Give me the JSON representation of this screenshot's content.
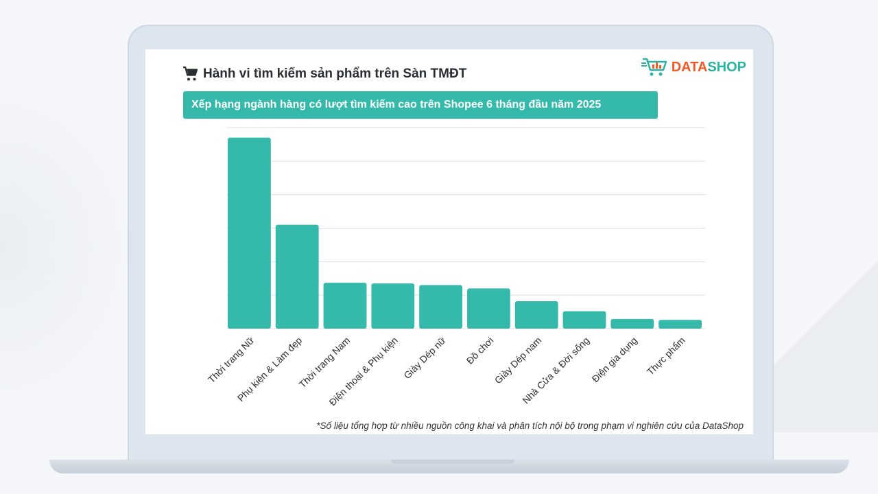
{
  "header": {
    "title": "Hành vi tìm kiếm sản phẩm trên Sàn TMĐT",
    "icon": "cart-icon"
  },
  "brand": {
    "part1": "DATA",
    "part2": "SHOP",
    "colors": {
      "data": "#f15a24",
      "shop": "#2ab3a5"
    }
  },
  "subtitle": "Xếp hạng ngành hàng có lượt tìm kiếm cao trên Shopee 6 tháng đầu năm 2025",
  "footnote": "*Số liệu tổng hợp từ nhiều nguồn công khai và phân tích nội bộ trong phạm vi nghiên cứu của DataShop",
  "colors": {
    "bar": "#34b9ab",
    "banner": "#34b9ab",
    "grid": "#dcdfe3"
  },
  "chart_data": {
    "type": "bar",
    "title": "",
    "xlabel": "",
    "ylabel": "",
    "categories": [
      "Thời trang Nữ",
      "Phụ kiện & Làm đẹp",
      "Thời trang Nam",
      "Điện thoại & Phụ kiện",
      "Giày Dép nữ",
      "Đồ chơi",
      "Giày Dép nam",
      "Nhà Cửa & Đời sống",
      "Điện gia dụng",
      "Thực phẩm"
    ],
    "values": [
      5.7,
      3.1,
      1.37,
      1.35,
      1.3,
      1.2,
      0.82,
      0.52,
      0.29,
      0.26
    ],
    "ylim": [
      0,
      6
    ],
    "grid": true,
    "y_tick_labels_shown": false,
    "legend": "none"
  }
}
